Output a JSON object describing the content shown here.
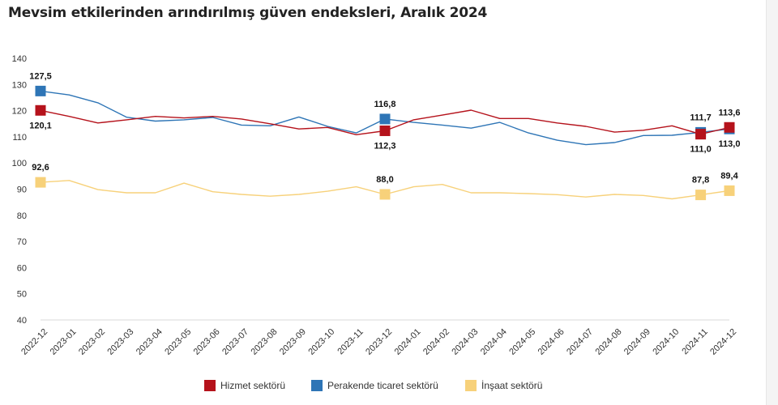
{
  "page": {
    "title": "Mevsim etkilerinden arındırılmış güven endeksleri, Aralık 2024"
  },
  "chart_data": {
    "type": "line",
    "title": "Mevsim etkilerinden arındırılmış güven endeksleri, Aralık 2024",
    "xlabel": "",
    "ylabel": "",
    "ylim": [
      40,
      140
    ],
    "yticks": [
      40,
      50,
      60,
      70,
      80,
      90,
      100,
      110,
      120,
      130,
      140
    ],
    "grid": false,
    "legend_position": "bottom",
    "x": [
      "2022-12",
      "2023-01",
      "2023-02",
      "2023-03",
      "2023-04",
      "2023-05",
      "2023-06",
      "2023-07",
      "2023-08",
      "2023-09",
      "2023-10",
      "2023-11",
      "2023-12",
      "2024-01",
      "2024-02",
      "2024-03",
      "2024-04",
      "2024-05",
      "2024-06",
      "2024-07",
      "2024-08",
      "2024-09",
      "2024-10",
      "2024-11",
      "2024-12"
    ],
    "series": [
      {
        "name": "Hizmet sektörü",
        "color": "#b5121b",
        "values": [
          120.1,
          117.8,
          115.3,
          116.5,
          117.8,
          117.2,
          117.8,
          116.8,
          115.0,
          113.0,
          113.6,
          110.8,
          112.3,
          116.5,
          118.3,
          120.2,
          117.0,
          117.0,
          115.3,
          114.0,
          111.8,
          112.5,
          114.2,
          111.0,
          113.6
        ],
        "markers": [
          {
            "index": 0,
            "label": "120,1",
            "pos": "below"
          },
          {
            "index": 12,
            "label": "112,3",
            "pos": "below"
          },
          {
            "index": 23,
            "label": "111,0",
            "pos": "below"
          },
          {
            "index": 24,
            "label": "113,6",
            "pos": "above"
          }
        ]
      },
      {
        "name": "Perakende ticaret sektörü",
        "color": "#2e75b6",
        "values": [
          127.5,
          126.0,
          123.0,
          117.5,
          116.0,
          116.5,
          117.4,
          114.5,
          114.2,
          117.6,
          114.0,
          111.5,
          116.8,
          115.5,
          114.5,
          113.3,
          115.5,
          111.5,
          108.7,
          107.0,
          107.8,
          110.5,
          110.6,
          111.7,
          113.0
        ],
        "markers": [
          {
            "index": 0,
            "label": "127,5",
            "pos": "above"
          },
          {
            "index": 12,
            "label": "116,8",
            "pos": "above"
          },
          {
            "index": 23,
            "label": "111,7",
            "pos": "above"
          },
          {
            "index": 24,
            "label": "113,0",
            "pos": "below"
          }
        ]
      },
      {
        "name": "İnşaat sektörü",
        "color": "#f7d17a",
        "values": [
          92.6,
          93.3,
          89.8,
          88.6,
          88.6,
          92.3,
          89.0,
          88.0,
          87.3,
          88.0,
          89.2,
          90.9,
          88.0,
          90.9,
          91.8,
          88.6,
          88.6,
          88.3,
          87.9,
          87.0,
          88.0,
          87.6,
          86.3,
          87.8,
          89.4
        ],
        "markers": [
          {
            "index": 0,
            "label": "92,6",
            "pos": "above"
          },
          {
            "index": 12,
            "label": "88,0",
            "pos": "above"
          },
          {
            "index": 23,
            "label": "87,8",
            "pos": "above"
          },
          {
            "index": 24,
            "label": "89,4",
            "pos": "above"
          }
        ]
      }
    ]
  }
}
